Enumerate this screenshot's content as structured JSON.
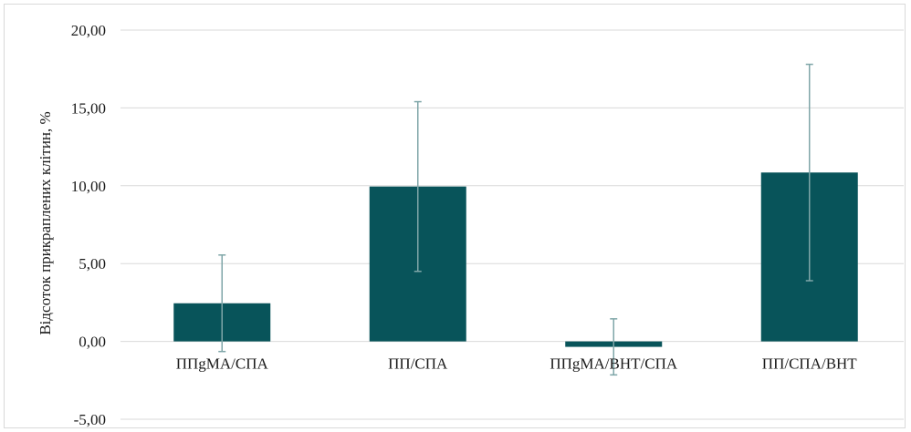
{
  "chart_data": {
    "type": "bar",
    "ylabel": "Відсоток прикраплених клітин, %",
    "xlabel": "",
    "ylim": [
      -5,
      20
    ],
    "yticks": [
      "-5,00",
      "0,00",
      "5,00",
      "10,00",
      "15,00",
      "20,00"
    ],
    "ytick_values": [
      -5,
      0,
      5,
      10,
      15,
      20
    ],
    "categories": [
      "ППgMA/СПА",
      "ПП/СПА",
      "ППgMA/ВНТ/СПА",
      "ПП/СПА/ВНТ"
    ],
    "values": [
      2.45,
      9.95,
      -0.35,
      10.85
    ],
    "errors": [
      3.1,
      5.45,
      1.8,
      6.95
    ],
    "bar_color": "#08545a",
    "error_color": "#7fa6a8",
    "grid": true,
    "grid_color": "#d9d9d9"
  }
}
